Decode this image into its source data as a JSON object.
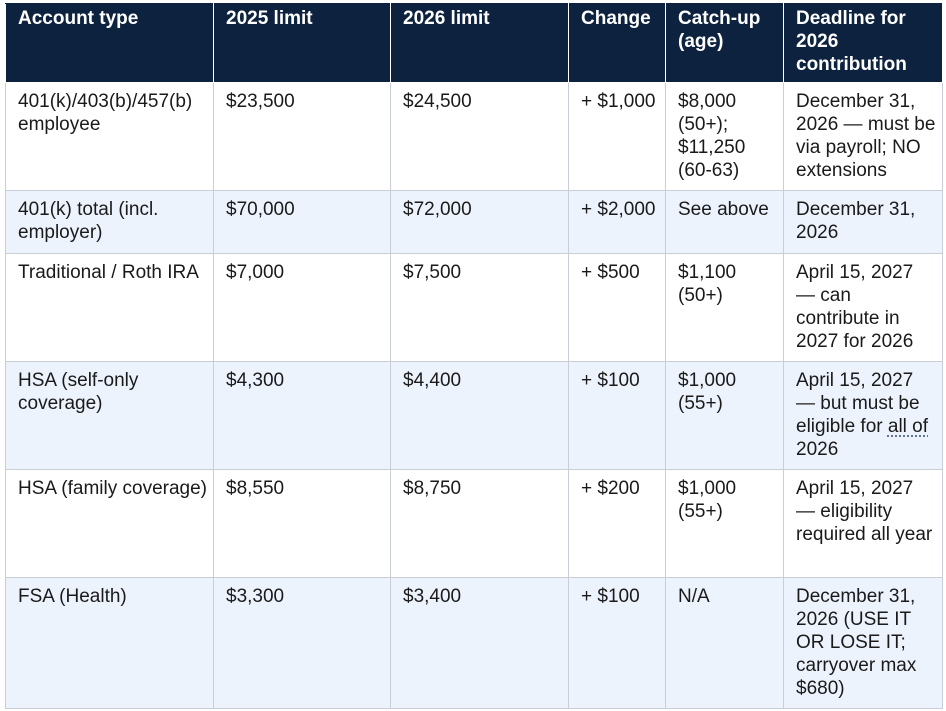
{
  "columns": [
    "Account type",
    "2025 limit",
    "2026 limit",
    "Change",
    "Catch-up (age)",
    "Deadline for 2026 contribution"
  ],
  "rows": [
    {
      "account": "401(k)/403(b)/457(b) employee",
      "limit_2025": "$23,500",
      "limit_2026": "$24,500",
      "change": "+ $1,000",
      "catch_up": "$8,000 (50+); $11,250 (60-63)",
      "deadline": "December 31, 2026 — must be via payroll; NO extensions"
    },
    {
      "account": "401(k) total (incl. employer)",
      "limit_2025": "$70,000",
      "limit_2026": "$72,000",
      "change": "+ $2,000",
      "catch_up": "See above",
      "deadline": "December 31, 2026"
    },
    {
      "account": "Traditional / Roth IRA",
      "limit_2025": "$7,000",
      "limit_2026": "$7,500",
      "change": "+ $500",
      "catch_up": "$1,100 (50+)",
      "deadline": "April 15, 2027 — can contribute in 2027 for 2026"
    },
    {
      "account": "HSA (self-only coverage)",
      "limit_2025": "$4,300",
      "limit_2026": "$4,400",
      "change": "+ $100",
      "catch_up": "$1,000 (55+)",
      "deadline_before": "April 15, 2027 — but must be eligible for ",
      "deadline_emph": "all of",
      "deadline_after": " 2026"
    },
    {
      "account": "HSA (family coverage)",
      "limit_2025": "$8,550",
      "limit_2026": "$8,750",
      "change": "+ $200",
      "catch_up": "$1,000 (55+)",
      "deadline": "April 15, 2027 — eligibility required all year"
    },
    {
      "account": "FSA (Health)",
      "limit_2025": "$3,300",
      "limit_2026": "$3,400",
      "change": "+ $100",
      "catch_up": "N/A",
      "deadline": "December 31, 2026 (USE IT OR LOSE IT; carryover max $680)"
    }
  ]
}
